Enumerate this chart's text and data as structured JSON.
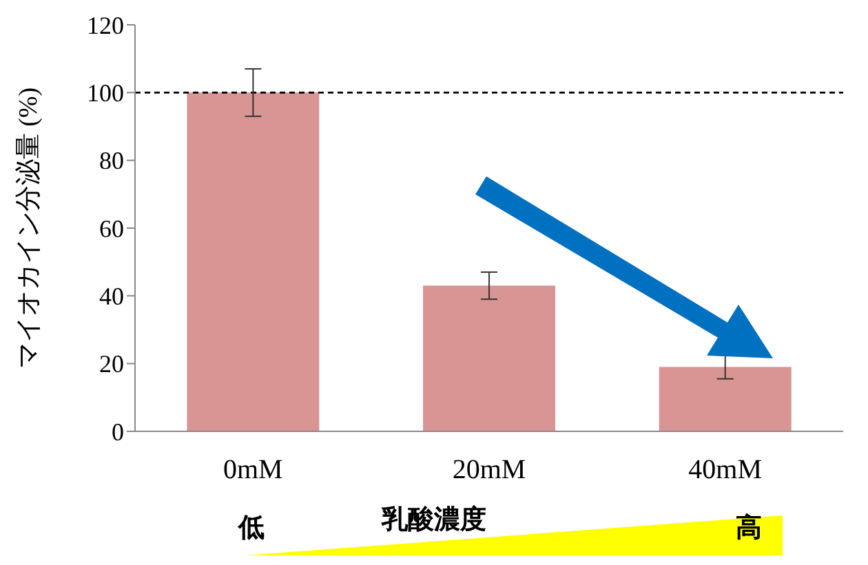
{
  "chart_data": {
    "type": "bar",
    "ylabel": "マイオカイン分泌量 (%)",
    "xlabel": "乳酸濃度",
    "categories": [
      "0mM",
      "20mM",
      "40mM"
    ],
    "values": [
      100,
      43,
      19
    ],
    "errors": [
      7,
      4,
      3.5
    ],
    "color": "#d99594",
    "ylim": [
      0,
      120
    ],
    "yticks": [
      0,
      20,
      40,
      60,
      80,
      100,
      120
    ],
    "grid": false,
    "legend": false,
    "ref_lines": [
      {
        "axis": "y",
        "value": 100,
        "color": "#000000",
        "line_style": "dashed"
      }
    ],
    "annotations": [
      "低",
      "高"
    ]
  }
}
